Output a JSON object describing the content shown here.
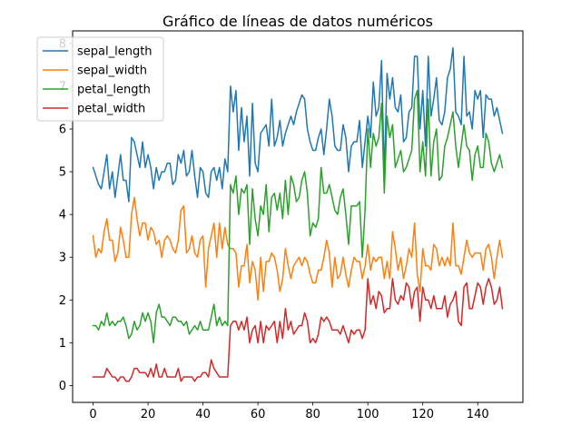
{
  "chart_data": {
    "type": "line",
    "title": "Gráfico de líneas de datos numéricos",
    "xlabel": "",
    "ylabel": "",
    "xlim": [
      -7.45,
      156.45
    ],
    "ylim": [
      -0.395,
      8.295
    ],
    "xticks": [
      0,
      20,
      40,
      60,
      80,
      100,
      120,
      140
    ],
    "yticks": [
      0,
      1,
      2,
      3,
      4,
      5,
      6,
      7,
      8
    ],
    "grid": false,
    "legend_position": "top-left",
    "series": [
      {
        "name": "sepal_length",
        "color": "#1f77b4",
        "values": [
          5.1,
          4.9,
          4.7,
          4.6,
          5.0,
          5.4,
          4.6,
          5.0,
          4.4,
          4.9,
          5.4,
          4.8,
          4.8,
          4.3,
          5.8,
          5.7,
          5.4,
          5.1,
          5.7,
          5.1,
          5.4,
          5.1,
          4.6,
          5.1,
          4.8,
          5.0,
          5.0,
          5.2,
          5.2,
          4.7,
          4.8,
          5.4,
          5.2,
          5.5,
          4.9,
          5.0,
          5.5,
          4.9,
          4.4,
          5.1,
          5.0,
          4.5,
          4.4,
          5.0,
          5.1,
          4.8,
          5.1,
          4.6,
          5.3,
          5.0,
          7.0,
          6.4,
          6.9,
          5.5,
          6.5,
          5.7,
          6.3,
          4.9,
          6.6,
          5.2,
          5.0,
          5.9,
          6.0,
          6.1,
          5.6,
          6.7,
          5.6,
          5.8,
          6.2,
          5.6,
          5.9,
          6.1,
          6.3,
          6.1,
          6.4,
          6.6,
          6.8,
          6.7,
          6.0,
          5.7,
          5.5,
          5.5,
          5.8,
          6.0,
          5.4,
          6.0,
          6.7,
          6.3,
          5.6,
          5.5,
          5.5,
          6.1,
          5.8,
          5.0,
          5.6,
          5.7,
          5.7,
          6.2,
          5.1,
          5.7,
          6.3,
          5.8,
          7.1,
          6.3,
          6.5,
          7.6,
          4.9,
          7.3,
          6.7,
          7.2,
          6.5,
          6.4,
          6.8,
          5.7,
          5.8,
          6.4,
          6.5,
          7.7,
          7.7,
          6.0,
          6.9,
          5.6,
          7.7,
          6.3,
          6.7,
          7.2,
          6.2,
          6.1,
          6.4,
          7.2,
          7.4,
          7.9,
          6.4,
          6.3,
          6.1,
          7.7,
          6.3,
          6.4,
          6.0,
          6.9,
          6.7,
          6.9,
          5.8,
          6.8,
          6.7,
          6.7,
          6.3,
          6.5,
          6.2,
          5.9
        ]
      },
      {
        "name": "sepal_width",
        "color": "#ff7f0e",
        "values": [
          3.5,
          3.0,
          3.2,
          3.1,
          3.6,
          3.9,
          3.4,
          3.4,
          2.9,
          3.1,
          3.7,
          3.4,
          3.0,
          3.0,
          4.0,
          4.4,
          3.9,
          3.5,
          3.8,
          3.8,
          3.4,
          3.7,
          3.6,
          3.3,
          3.4,
          3.0,
          3.4,
          3.5,
          3.4,
          3.2,
          3.1,
          3.4,
          4.1,
          4.2,
          3.1,
          3.2,
          3.5,
          3.1,
          3.0,
          3.4,
          3.5,
          2.3,
          3.2,
          3.5,
          3.8,
          3.0,
          3.8,
          3.2,
          3.7,
          3.3,
          3.2,
          3.2,
          3.1,
          2.3,
          2.8,
          2.8,
          3.3,
          2.4,
          2.9,
          2.7,
          2.0,
          3.0,
          2.2,
          2.9,
          2.9,
          3.1,
          3.0,
          2.7,
          2.2,
          2.5,
          3.2,
          2.8,
          2.5,
          2.8,
          2.9,
          3.0,
          2.8,
          3.0,
          2.9,
          2.6,
          2.4,
          2.4,
          2.7,
          2.7,
          3.0,
          3.4,
          3.1,
          2.3,
          3.0,
          2.5,
          2.6,
          3.0,
          2.6,
          2.3,
          2.7,
          3.0,
          2.9,
          2.9,
          2.5,
          2.8,
          3.3,
          2.7,
          3.0,
          2.9,
          3.0,
          3.0,
          2.5,
          2.9,
          2.5,
          3.6,
          3.2,
          2.7,
          3.0,
          2.5,
          2.8,
          3.2,
          3.0,
          3.8,
          2.6,
          2.2,
          3.2,
          2.8,
          2.8,
          2.7,
          3.3,
          3.2,
          2.8,
          3.0,
          2.8,
          3.0,
          2.8,
          3.8,
          2.8,
          2.8,
          2.6,
          3.0,
          3.4,
          3.1,
          3.0,
          3.1,
          3.1,
          3.1,
          2.7,
          3.2,
          3.3,
          3.0,
          2.5,
          3.0,
          3.4,
          3.0
        ]
      },
      {
        "name": "petal_length",
        "color": "#2ca02c",
        "values": [
          1.4,
          1.4,
          1.3,
          1.5,
          1.4,
          1.7,
          1.4,
          1.5,
          1.4,
          1.5,
          1.5,
          1.6,
          1.4,
          1.1,
          1.2,
          1.5,
          1.3,
          1.4,
          1.7,
          1.5,
          1.7,
          1.5,
          1.0,
          1.7,
          1.9,
          1.6,
          1.6,
          1.5,
          1.4,
          1.6,
          1.6,
          1.5,
          1.5,
          1.4,
          1.5,
          1.2,
          1.3,
          1.4,
          1.3,
          1.5,
          1.3,
          1.3,
          1.3,
          1.6,
          1.9,
          1.4,
          1.6,
          1.4,
          1.5,
          1.4,
          4.7,
          4.5,
          4.9,
          4.0,
          4.6,
          4.5,
          4.7,
          3.3,
          4.6,
          3.9,
          3.5,
          4.2,
          4.0,
          4.7,
          3.6,
          4.4,
          4.5,
          4.1,
          4.5,
          3.9,
          4.8,
          4.0,
          4.9,
          4.7,
          4.3,
          4.4,
          4.8,
          5.0,
          4.5,
          3.5,
          3.8,
          3.7,
          3.9,
          5.1,
          4.5,
          4.5,
          4.7,
          4.4,
          4.1,
          4.0,
          4.4,
          4.6,
          4.0,
          3.3,
          4.2,
          4.2,
          4.2,
          4.3,
          3.0,
          4.1,
          6.0,
          5.1,
          5.9,
          5.6,
          5.8,
          6.6,
          4.5,
          6.3,
          5.8,
          6.1,
          5.1,
          5.3,
          5.5,
          5.0,
          5.1,
          5.3,
          5.5,
          6.7,
          6.9,
          5.0,
          5.7,
          4.9,
          6.7,
          4.9,
          5.7,
          6.0,
          4.8,
          4.9,
          5.6,
          5.8,
          6.1,
          6.4,
          5.6,
          5.1,
          5.6,
          6.1,
          5.6,
          5.5,
          4.8,
          5.4,
          5.6,
          5.1,
          5.1,
          5.9,
          5.7,
          5.2,
          5.0,
          5.2,
          5.4,
          5.1
        ]
      },
      {
        "name": "petal_width",
        "color": "#d62728",
        "values": [
          0.2,
          0.2,
          0.2,
          0.2,
          0.2,
          0.4,
          0.3,
          0.2,
          0.2,
          0.1,
          0.2,
          0.2,
          0.1,
          0.1,
          0.2,
          0.4,
          0.4,
          0.3,
          0.3,
          0.3,
          0.2,
          0.4,
          0.2,
          0.5,
          0.2,
          0.2,
          0.4,
          0.2,
          0.2,
          0.2,
          0.2,
          0.4,
          0.1,
          0.2,
          0.2,
          0.2,
          0.2,
          0.1,
          0.2,
          0.2,
          0.3,
          0.3,
          0.2,
          0.6,
          0.4,
          0.3,
          0.2,
          0.2,
          0.2,
          0.2,
          1.4,
          1.5,
          1.5,
          1.3,
          1.5,
          1.3,
          1.6,
          1.0,
          1.3,
          1.4,
          1.0,
          1.5,
          1.0,
          1.4,
          1.3,
          1.4,
          1.5,
          1.0,
          1.5,
          1.1,
          1.8,
          1.3,
          1.5,
          1.2,
          1.3,
          1.4,
          1.4,
          1.7,
          1.5,
          1.0,
          1.1,
          1.0,
          1.2,
          1.6,
          1.5,
          1.6,
          1.5,
          1.3,
          1.3,
          1.3,
          1.2,
          1.4,
          1.2,
          1.0,
          1.3,
          1.2,
          1.3,
          1.3,
          1.1,
          1.3,
          2.5,
          1.9,
          2.1,
          1.8,
          2.2,
          2.1,
          1.7,
          1.8,
          1.8,
          2.5,
          2.0,
          1.9,
          2.1,
          2.0,
          2.4,
          2.3,
          1.8,
          2.2,
          2.3,
          1.5,
          2.3,
          2.0,
          2.0,
          1.8,
          2.1,
          1.8,
          1.8,
          1.8,
          2.1,
          1.6,
          1.9,
          2.0,
          2.2,
          1.5,
          1.4,
          2.3,
          2.4,
          1.8,
          1.8,
          2.1,
          2.4,
          2.3,
          1.9,
          2.3,
          2.5,
          2.3,
          1.9,
          2.0,
          2.3,
          1.8
        ]
      }
    ]
  }
}
